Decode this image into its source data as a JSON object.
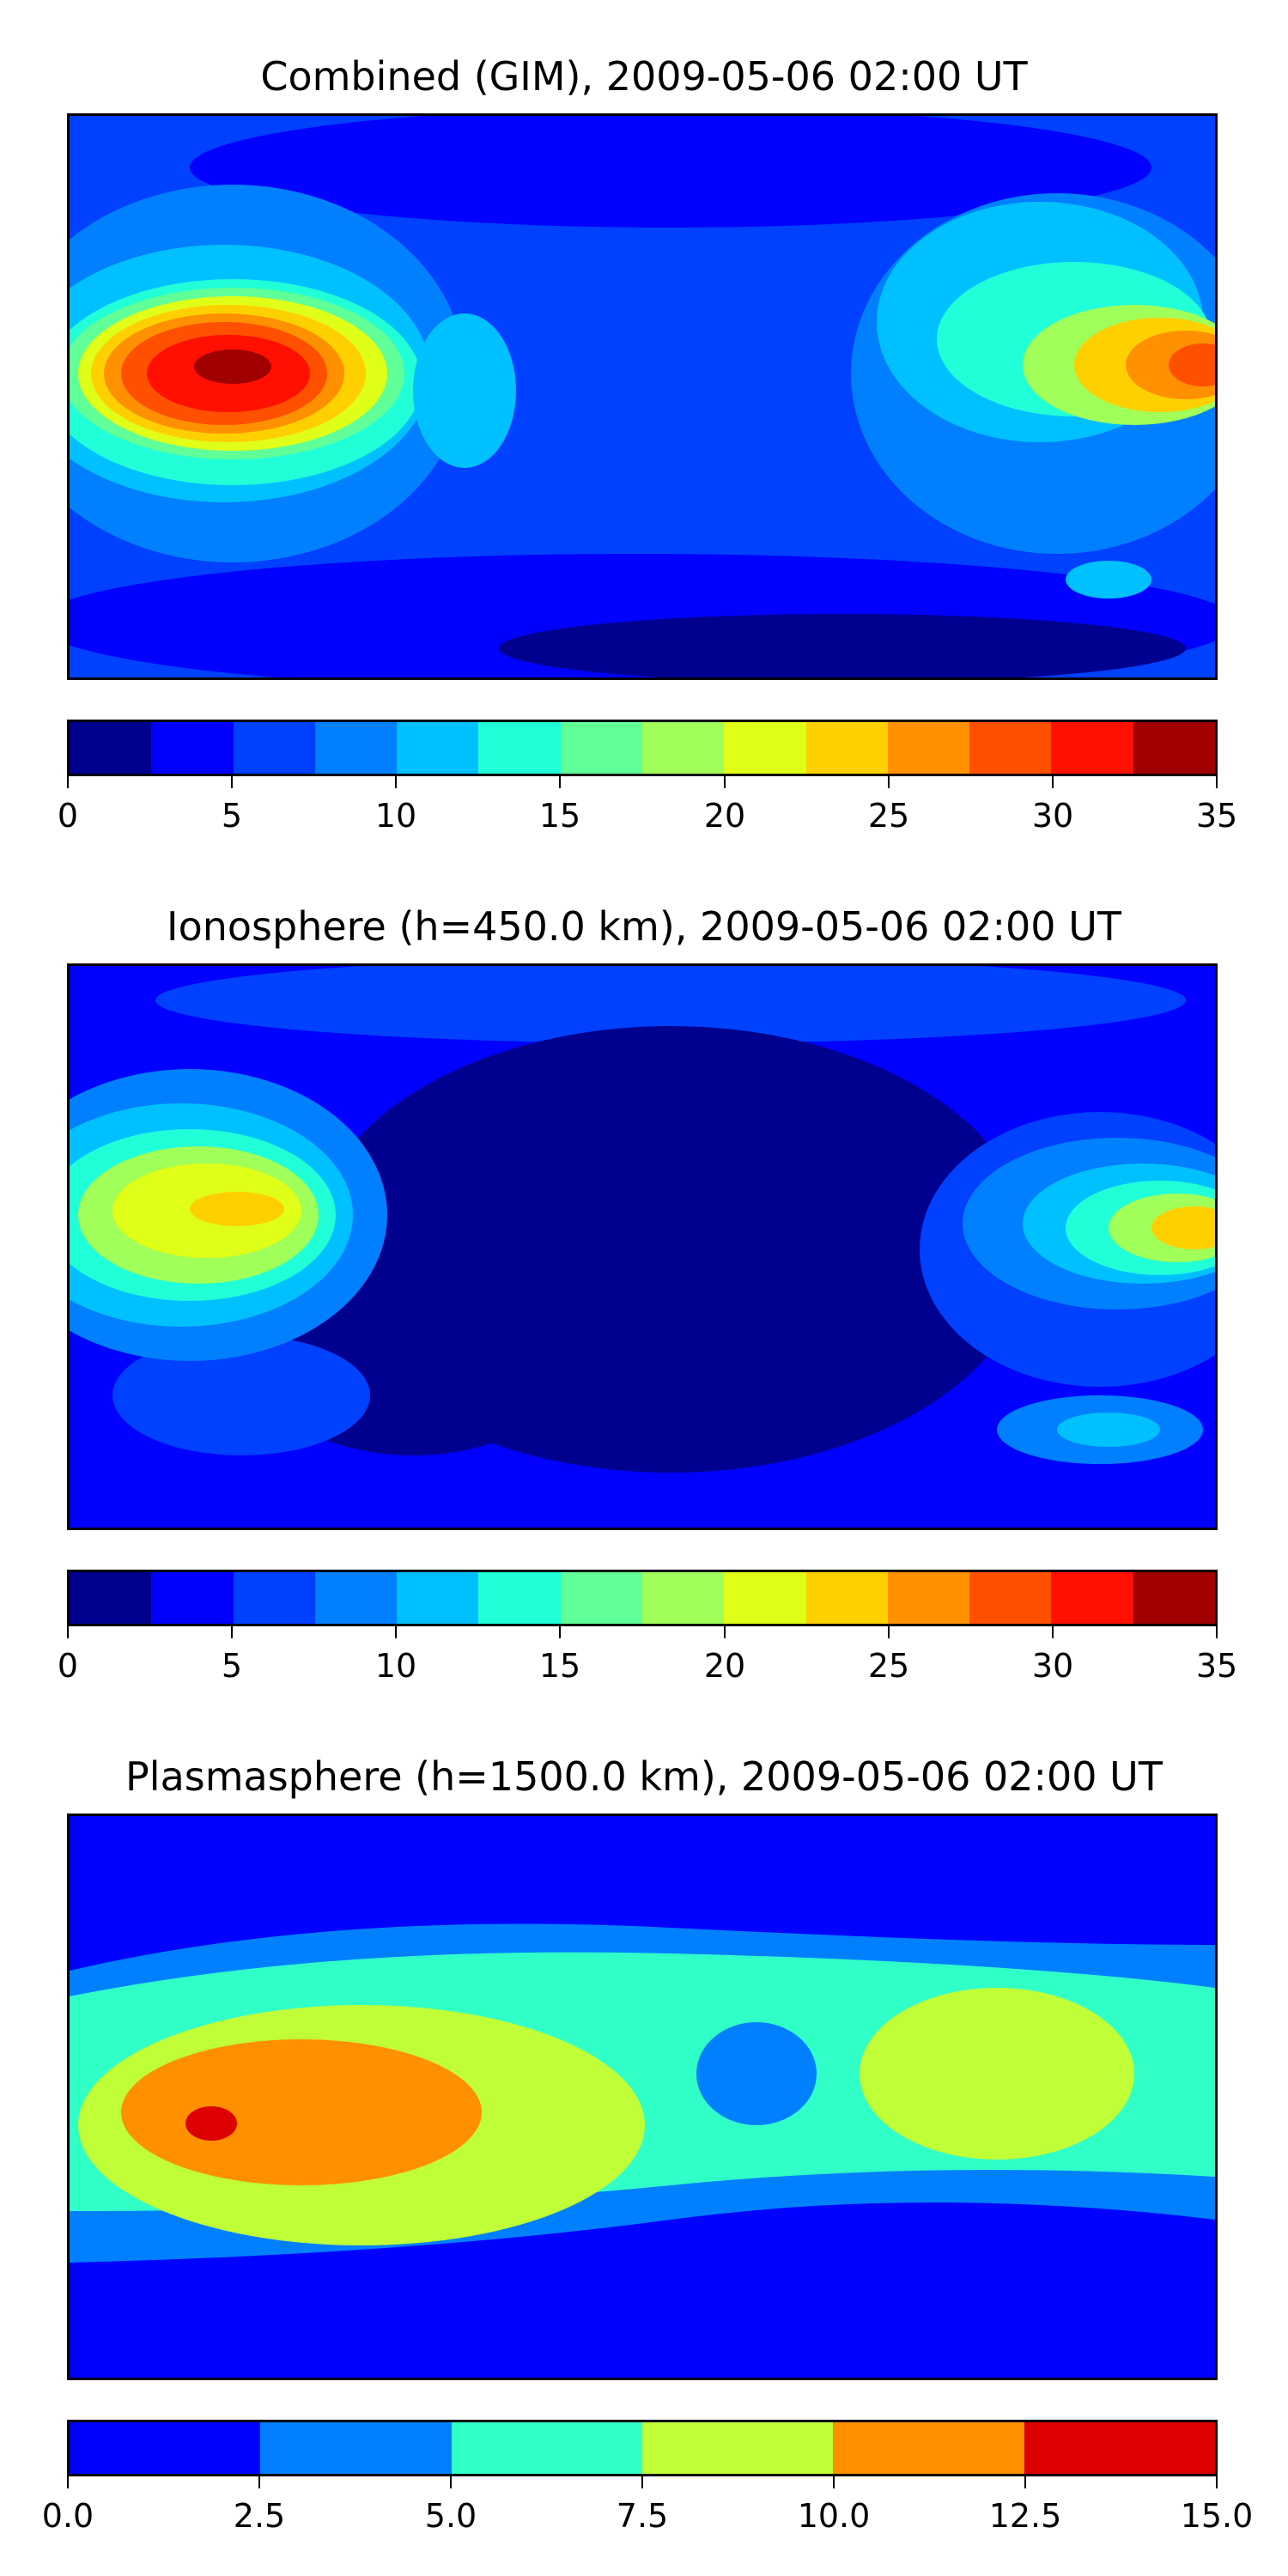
{
  "panels": [
    {
      "title": "Combined (GIM), 2009-05-06 02:00 UT",
      "colorbar": {
        "ticks": [
          "0",
          "5",
          "10",
          "15",
          "20",
          "25",
          "30",
          "35"
        ],
        "colors": [
          "#00008f",
          "#0000ff",
          "#0040ff",
          "#0080ff",
          "#00c0ff",
          "#20ffd8",
          "#60ff98",
          "#a0ff58",
          "#e0ff18",
          "#ffd000",
          "#ff9000",
          "#ff5000",
          "#ff1000",
          "#a00000"
        ]
      }
    },
    {
      "title": "Ionosphere  (h=450.0 km), 2009-05-06 02:00 UT",
      "colorbar": {
        "ticks": [
          "0",
          "5",
          "10",
          "15",
          "20",
          "25",
          "30",
          "35"
        ],
        "colors": [
          "#00008f",
          "#0000ff",
          "#0040ff",
          "#0080ff",
          "#00c0ff",
          "#20ffd8",
          "#60ff98",
          "#a0ff58",
          "#e0ff18",
          "#ffd000",
          "#ff9000",
          "#ff5000",
          "#ff1000",
          "#a00000"
        ]
      }
    },
    {
      "title": "Plasmasphere (h=1500.0 km), 2009-05-06 02:00 UT",
      "colorbar": {
        "ticks": [
          "0.0",
          "2.5",
          "5.0",
          "7.5",
          "10.0",
          "12.5",
          "15.0"
        ],
        "colors": [
          "#0000ff",
          "#0080ff",
          "#30ffc8",
          "#c0ff38",
          "#ff9000",
          "#dd0000"
        ]
      }
    }
  ]
}
